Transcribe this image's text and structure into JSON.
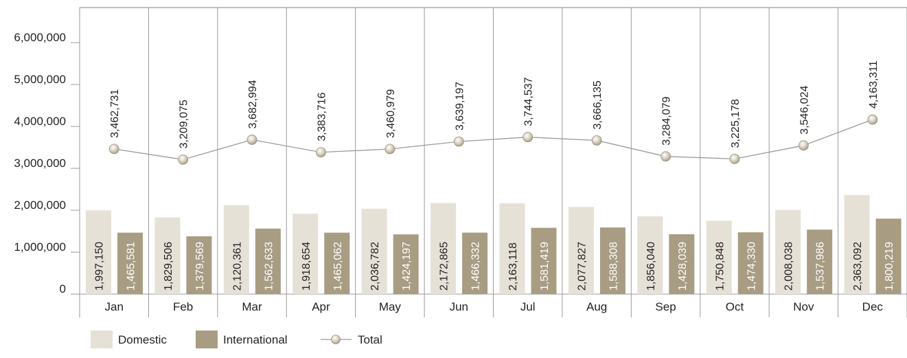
{
  "chart_data": {
    "type": "bar",
    "title": "",
    "xlabel": "",
    "ylabel": "",
    "ylim": [
      0,
      6000000
    ],
    "yticks": [
      "0",
      "1,000,000",
      "2,000,000",
      "3,000,000",
      "4,000,000",
      "5,000,000",
      "6,000,000"
    ],
    "categories": [
      "Jan",
      "Feb",
      "Mar",
      "Apr",
      "May",
      "Jun",
      "Jul",
      "Aug",
      "Sep",
      "Oct",
      "Nov",
      "Dec"
    ],
    "series": [
      {
        "name": "Domestic",
        "kind": "bar",
        "color": "#e6e1d7",
        "label_color": "#231f20",
        "values": [
          1997150,
          1829506,
          2120361,
          1918654,
          2036782,
          2172865,
          2163118,
          2077827,
          1856040,
          1750848,
          2008038,
          2363092
        ],
        "labels": [
          "1,997,150",
          "1,829,506",
          "2,120,361",
          "1,918,654",
          "2,036,782",
          "2,172,865",
          "2,163,118",
          "2,077,827",
          "1,856,040",
          "1,750,848",
          "2,008,038",
          "2,363,092"
        ]
      },
      {
        "name": "International",
        "kind": "bar",
        "color": "#a89c83",
        "label_color": "#ffffff",
        "values": [
          1465581,
          1379569,
          1562633,
          1465062,
          1424197,
          1466332,
          1581419,
          1588308,
          1428039,
          1474330,
          1537986,
          1800219
        ],
        "labels": [
          "1,465,581",
          "1,379,569",
          "1,562,633",
          "1,465,062",
          "1,424,197",
          "1,466,332",
          "1,581,419",
          "1,588,308",
          "1,428,039",
          "1,474,330",
          "1,537,986",
          "1,800,219"
        ]
      },
      {
        "name": "Total",
        "kind": "line",
        "color": "#9a9a9a",
        "marker_color": "#d9d2c2",
        "values": [
          3462731,
          3209075,
          3682994,
          3383716,
          3460979,
          3639197,
          3744537,
          3666135,
          3284079,
          3225178,
          3546024,
          4163311
        ],
        "labels": [
          "3,462,731",
          "3,209,075",
          "3,682,994",
          "3,383,716",
          "3,460,979",
          "3,639,197",
          "3,744,537",
          "3,666,135",
          "3,284,079",
          "3,225,178",
          "3,546,024",
          "4,163,311"
        ]
      }
    ],
    "grid": false,
    "legend_position": "bottom-left",
    "colors": {
      "axis": "#9a9a9a",
      "text": "#231f20"
    }
  }
}
